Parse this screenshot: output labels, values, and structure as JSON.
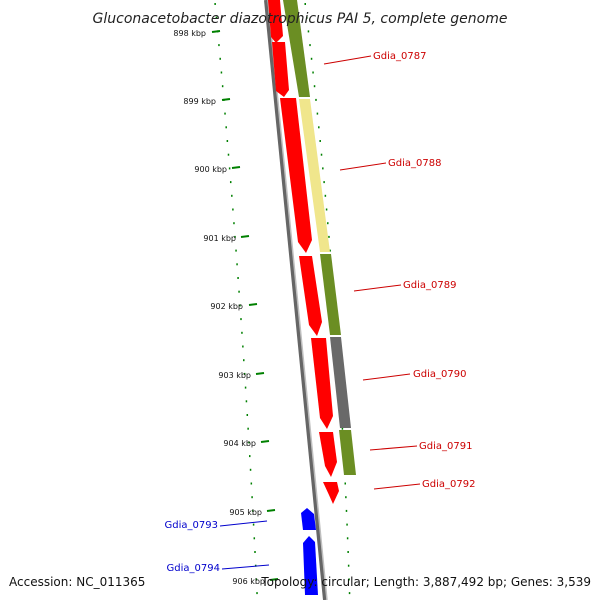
{
  "map": {
    "title": "Gluconacetobacter diazotrophicus PAI 5, complete genome",
    "accession": "Accession: NC_011365",
    "summary": "Topology: circular; Length: 3,887,492 bp; Genes: 3,539",
    "ticks": [
      {
        "label": "898 kbp"
      },
      {
        "label": "899 kbp"
      },
      {
        "label": "900 kbp"
      },
      {
        "label": "901 kbp"
      },
      {
        "label": "902 kbp"
      },
      {
        "label": "903 kbp"
      },
      {
        "label": "904 kbp"
      },
      {
        "label": "905 kbp"
      },
      {
        "label": "906 kbp"
      }
    ],
    "gene_labels": [
      {
        "text": "Gdia_0787",
        "color": "#cc0000"
      },
      {
        "text": "Gdia_0788",
        "color": "#cc0000"
      },
      {
        "text": "Gdia_0789",
        "color": "#cc0000"
      },
      {
        "text": "Gdia_0790",
        "color": "#cc0000"
      },
      {
        "text": "Gdia_0791",
        "color": "#cc0000"
      },
      {
        "text": "Gdia_0792",
        "color": "#cc0000"
      },
      {
        "text": "Gdia_0793",
        "color": "#0000cc"
      },
      {
        "text": "Gdia_0794",
        "color": "#0000cc"
      }
    ],
    "colors": {
      "forward_cds": "#ff0000",
      "reverse_cds": "#0000ff",
      "cog_green": "#6b8e23",
      "cog_yellow": "#f0e68c",
      "cog_gray": "#696969",
      "backbone": "#808080",
      "ticks": "#008000"
    }
  }
}
